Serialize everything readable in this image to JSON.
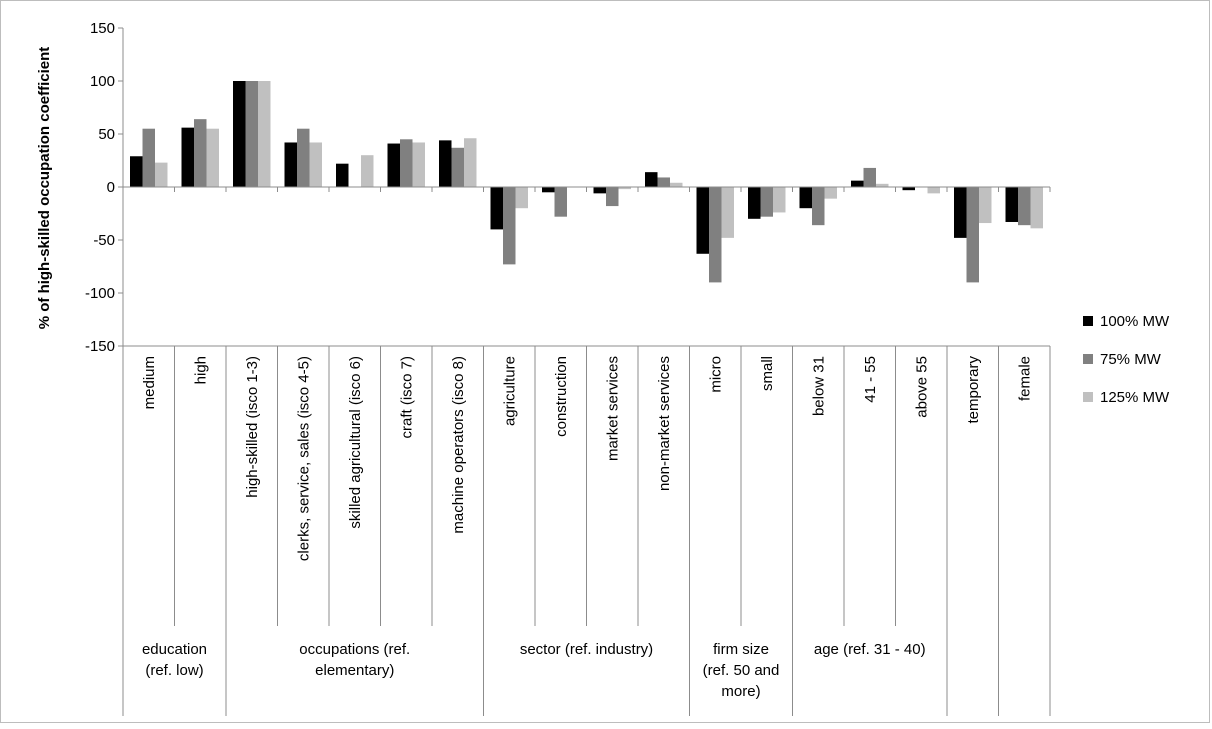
{
  "chart_data": {
    "type": "bar",
    "ylabel": "% of high-skilled occupation coefficient",
    "ylim": [
      -150,
      150
    ],
    "yticks": [
      150,
      100,
      50,
      0,
      -50,
      -100,
      -150
    ],
    "categories": [
      "medium",
      "high",
      "high-skilled (isco 1-3)",
      "clerks, service, sales (isco 4-5)",
      "skilled agricultural (isco 6)",
      "craft (isco 7)",
      "machine operators (isco 8)",
      "agriculture",
      "construction",
      "market services",
      "non-market services",
      "micro",
      "small",
      "below 31",
      "41 - 55",
      "above 55",
      "temporary",
      "female"
    ],
    "series": [
      {
        "name": "100% MW",
        "color": "#000000",
        "values": [
          29,
          56,
          100,
          42,
          22,
          41,
          44,
          -40,
          -5,
          -6,
          14,
          -63,
          -30,
          -20,
          6,
          -3,
          -48,
          -33
        ]
      },
      {
        "name": "75% MW",
        "color": "#808080",
        "values": [
          55,
          64,
          100,
          55,
          0,
          45,
          37,
          -73,
          -28,
          -18,
          9,
          -90,
          -28,
          -36,
          18,
          0,
          -90,
          -36
        ]
      },
      {
        "name": "125% MW",
        "color": "#c0c0c0",
        "values": [
          23,
          55,
          100,
          42,
          30,
          42,
          46,
          -20,
          0,
          -2,
          4,
          -48,
          -24,
          -11,
          3,
          -6,
          -34,
          -39
        ]
      }
    ],
    "groups": [
      {
        "label": "education (ref. low)",
        "lines": [
          "education",
          "(ref. low)"
        ],
        "start": 0,
        "span": 2
      },
      {
        "label": "occupations (ref. elementary)",
        "lines": [
          "occupations (ref.",
          "elementary)"
        ],
        "start": 2,
        "span": 5
      },
      {
        "label": "sector (ref. industry)",
        "lines": [
          "sector (ref. industry)"
        ],
        "start": 7,
        "span": 4
      },
      {
        "label": "firm size (ref. 50 and more)",
        "lines": [
          "firm size",
          "(ref. 50 and",
          "more)"
        ],
        "start": 11,
        "span": 2
      },
      {
        "label": "age (ref. 31 - 40)",
        "lines": [
          "age (ref. 31 - 40)"
        ],
        "start": 13,
        "span": 3
      },
      {
        "label": "",
        "lines": [],
        "start": 16,
        "span": 1
      },
      {
        "label": "",
        "lines": [],
        "start": 17,
        "span": 1
      }
    ],
    "legend_position": "right",
    "grid": false
  }
}
